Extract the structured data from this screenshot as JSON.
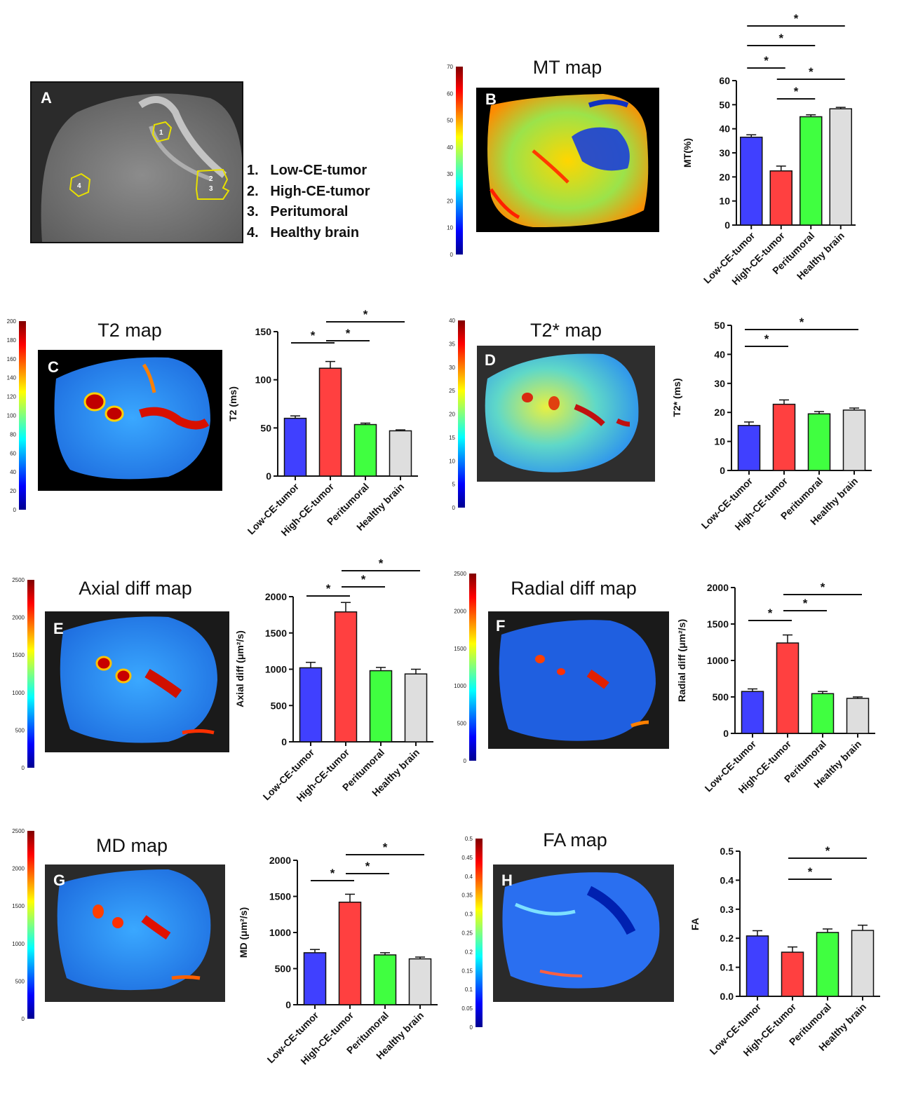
{
  "legend": {
    "panel": "A",
    "items": [
      "1.   Low-CE-tumor",
      "2.   High-CE-tumor",
      "3.   Peritumoral",
      "4.   Healthy brain"
    ],
    "roi_numbers": [
      "1",
      "2",
      "3",
      "4"
    ]
  },
  "colors": {
    "series": [
      "#4040ff",
      "#ff4040",
      "#40ff40",
      "#dedede"
    ],
    "roi": "#e8e000"
  },
  "chart_data": [
    {
      "id": "B",
      "type": "bar",
      "map_title": "MT map",
      "letter": "B",
      "categories": [
        "Low-CE-tumor",
        "High-CE-tumor",
        "Peritumoral",
        "Healthy brain"
      ],
      "values": [
        36.5,
        22.5,
        45.0,
        48.3
      ],
      "errors": [
        1.0,
        2.0,
        0.8,
        0.6
      ],
      "ylabel": "MT(%)",
      "ylim": [
        0,
        60
      ],
      "yticks": [
        0,
        10,
        20,
        30,
        40,
        50,
        60
      ],
      "colorbar_ticks": [
        0,
        10,
        20,
        30,
        40,
        50,
        60,
        70
      ],
      "significance": [
        {
          "from": 0,
          "to": 3,
          "label": "*"
        },
        {
          "from": 0,
          "to": 2,
          "label": "*"
        },
        {
          "from": 0,
          "to": 1,
          "label": "*"
        },
        {
          "from": 1,
          "to": 3,
          "label": "*"
        },
        {
          "from": 1,
          "to": 2,
          "label": "*"
        }
      ]
    },
    {
      "id": "C",
      "type": "bar",
      "map_title": "T2 map",
      "letter": "C",
      "categories": [
        "Low-CE-tumor",
        "High-CE-tumor",
        "Peritumoral",
        "Healthy brain"
      ],
      "values": [
        60,
        112,
        53.5,
        47
      ],
      "errors": [
        2.5,
        7,
        1.5,
        1
      ],
      "ylabel": "T2 (ms)",
      "ylim": [
        0,
        150
      ],
      "yticks": [
        0,
        50,
        100,
        150
      ],
      "colorbar_ticks": [
        0,
        20,
        40,
        60,
        80,
        100,
        120,
        140,
        160,
        180,
        200
      ],
      "significance": [
        {
          "from": 0,
          "to": 1,
          "label": "*"
        },
        {
          "from": 1,
          "to": 2,
          "label": "*"
        },
        {
          "from": 1,
          "to": 3,
          "label": "*"
        }
      ]
    },
    {
      "id": "D",
      "type": "bar",
      "map_title": "T2* map",
      "letter": "D",
      "categories": [
        "Low-CE-tumor",
        "High-CE-tumor",
        "Peritumoral",
        "Healthy brain"
      ],
      "values": [
        15.5,
        22.8,
        19.5,
        20.8
      ],
      "errors": [
        1.2,
        1.5,
        0.8,
        0.7
      ],
      "ylabel": "T2* (ms)",
      "ylim": [
        0,
        50
      ],
      "yticks": [
        0,
        10,
        20,
        30,
        40,
        50
      ],
      "colorbar_ticks": [
        0,
        5,
        10,
        15,
        20,
        25,
        30,
        35,
        40
      ],
      "significance": [
        {
          "from": 0,
          "to": 1,
          "label": "*"
        },
        {
          "from": 0,
          "to": 3,
          "label": "*"
        }
      ]
    },
    {
      "id": "E",
      "type": "bar",
      "map_title": "Axial diff map",
      "letter": "E",
      "categories": [
        "Low-CE-tumor",
        "High-CE-tumor",
        "Peritumoral",
        "Healthy brain"
      ],
      "values": [
        1020,
        1790,
        980,
        935
      ],
      "errors": [
        75,
        130,
        45,
        65
      ],
      "ylabel": "Axial diff (μm²/s)",
      "ylim": [
        0,
        2000
      ],
      "yticks": [
        0,
        500,
        1000,
        1500,
        2000
      ],
      "colorbar_ticks": [
        0,
        500,
        1000,
        1500,
        2000,
        2500
      ],
      "significance": [
        {
          "from": 0,
          "to": 1,
          "label": "*"
        },
        {
          "from": 1,
          "to": 2,
          "label": "*"
        },
        {
          "from": 1,
          "to": 3,
          "label": "*"
        }
      ]
    },
    {
      "id": "F",
      "type": "bar",
      "map_title": "Radial diff map",
      "letter": "F",
      "categories": [
        "Low-CE-tumor",
        "High-CE-tumor",
        "Peritumoral",
        "Healthy brain"
      ],
      "values": [
        575,
        1240,
        545,
        480
      ],
      "errors": [
        35,
        110,
        30,
        20
      ],
      "ylabel": "Radial diff (μm²/s)",
      "ylim": [
        0,
        2000
      ],
      "yticks": [
        0,
        500,
        1000,
        1500,
        2000
      ],
      "colorbar_ticks": [
        0,
        500,
        1000,
        1500,
        2000,
        2500
      ],
      "significance": [
        {
          "from": 0,
          "to": 1,
          "label": "*"
        },
        {
          "from": 1,
          "to": 2,
          "label": "*"
        },
        {
          "from": 1,
          "to": 3,
          "label": "*"
        }
      ]
    },
    {
      "id": "G",
      "type": "bar",
      "map_title": "MD map",
      "letter": "G",
      "categories": [
        "Low-CE-tumor",
        "High-CE-tumor",
        "Peritumoral",
        "Healthy brain"
      ],
      "values": [
        720,
        1420,
        690,
        635
      ],
      "errors": [
        45,
        110,
        30,
        25
      ],
      "ylabel": "MD (μm²/s)",
      "ylim": [
        0,
        2000
      ],
      "yticks": [
        0,
        500,
        1000,
        1500,
        2000
      ],
      "colorbar_ticks": [
        0,
        500,
        1000,
        1500,
        2000,
        2500
      ],
      "significance": [
        {
          "from": 0,
          "to": 1,
          "label": "*"
        },
        {
          "from": 1,
          "to": 2,
          "label": "*"
        },
        {
          "from": 1,
          "to": 3,
          "label": "*"
        }
      ]
    },
    {
      "id": "H",
      "type": "bar",
      "map_title": "FA map",
      "letter": "H",
      "categories": [
        "Low-CE-tumor",
        "High-CE-tumor",
        "Peritumoral",
        "Healthy brain"
      ],
      "values": [
        0.208,
        0.152,
        0.22,
        0.227
      ],
      "errors": [
        0.018,
        0.018,
        0.012,
        0.018
      ],
      "ylabel": "FA",
      "ylim": [
        0,
        0.5
      ],
      "yticks": [
        0.0,
        0.1,
        0.2,
        0.3,
        0.4,
        0.5
      ],
      "colorbar_ticks": [
        0,
        0.05,
        0.1,
        0.15,
        0.2,
        0.25,
        0.3,
        0.35,
        0.4,
        0.45,
        0.5
      ],
      "significance": [
        {
          "from": 1,
          "to": 2,
          "label": "*"
        },
        {
          "from": 1,
          "to": 3,
          "label": "*"
        }
      ]
    }
  ]
}
